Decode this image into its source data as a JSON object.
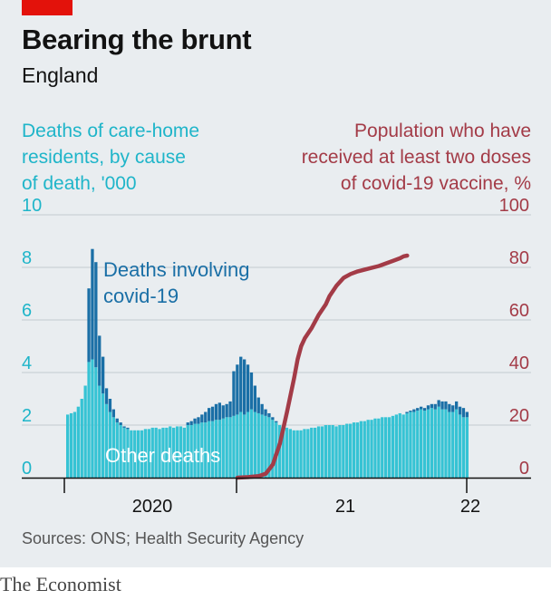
{
  "header": {
    "title": "Bearing the brunt",
    "subtitle": "England"
  },
  "axes": {
    "left_label": [
      "Deaths of care-home",
      "residents, by cause",
      "of death, '000"
    ],
    "right_label": [
      "Population who have",
      "received at least two doses",
      "of covid-19 vaccine, %"
    ]
  },
  "annotations": {
    "covid": [
      "Deaths involving",
      "covid-19"
    ],
    "other": "Other deaths"
  },
  "footer": {
    "source": "Sources: ONS; Health Security Agency",
    "brand": "The Economist"
  },
  "colors": {
    "other_deaths": "#36c3d4",
    "covid_deaths": "#1a6fa6",
    "vaccine_line": "#a33b47",
    "left_axis": "#1fb5c9",
    "right_axis": "#a33b47"
  },
  "chart_data": {
    "type": "bar",
    "stacked": true,
    "x_unit": "week",
    "x_start": "2020-01",
    "x_tick_labels": [
      "2020",
      "21",
      "22"
    ],
    "left_axis": {
      "label": "Deaths of care-home residents, by cause of death, '000",
      "ylim": [
        0,
        10
      ],
      "ticks": [
        0,
        2,
        4,
        6,
        8,
        10
      ]
    },
    "right_axis": {
      "label": "Population who have received at least two doses of covid-19 vaccine, %",
      "ylim": [
        0,
        100
      ],
      "ticks": [
        0,
        20,
        40,
        60,
        80,
        100
      ]
    },
    "series": [
      {
        "name": "Other deaths",
        "values": [
          2.4,
          2.45,
          2.5,
          2.7,
          3.0,
          3.5,
          4.4,
          4.5,
          4.2,
          3.5,
          3.2,
          2.8,
          2.5,
          2.3,
          2.1,
          2.0,
          1.9,
          1.85,
          1.8,
          1.8,
          1.8,
          1.8,
          1.85,
          1.85,
          1.9,
          1.9,
          1.85,
          1.9,
          1.9,
          1.95,
          1.9,
          1.95,
          1.95,
          1.9,
          2.0,
          2.0,
          2.05,
          2.05,
          2.1,
          2.1,
          2.15,
          2.15,
          2.2,
          2.2,
          2.25,
          2.3,
          2.3,
          2.35,
          2.4,
          2.5,
          2.4,
          2.5,
          2.6,
          2.5,
          2.45,
          2.4,
          2.35,
          2.3,
          2.2,
          2.1,
          2.0,
          1.95,
          1.9,
          1.85,
          1.8,
          1.8,
          1.8,
          1.85,
          1.85,
          1.9,
          1.9,
          1.95,
          1.95,
          2.0,
          2.0,
          2.0,
          1.95,
          2.0,
          2.0,
          2.05,
          2.05,
          2.1,
          2.1,
          2.15,
          2.15,
          2.2,
          2.2,
          2.25,
          2.25,
          2.3,
          2.3,
          2.3,
          2.35,
          2.4,
          2.45,
          2.4,
          2.45,
          2.5,
          2.5,
          2.55,
          2.6,
          2.55,
          2.6,
          2.65,
          2.6,
          2.7,
          2.6,
          2.6,
          2.5,
          2.5,
          2.6,
          2.4,
          2.3,
          2.3
        ]
      },
      {
        "name": "Deaths involving covid-19",
        "values": [
          0,
          0,
          0,
          0,
          0,
          0,
          2.8,
          4.2,
          4.0,
          1.9,
          1.4,
          0.6,
          0.5,
          0.3,
          0.15,
          0.1,
          0.05,
          0.05,
          0,
          0,
          0,
          0,
          0,
          0,
          0,
          0,
          0,
          0,
          0,
          0,
          0,
          0,
          0,
          0,
          0.1,
          0.15,
          0.2,
          0.25,
          0.3,
          0.4,
          0.5,
          0.55,
          0.6,
          0.65,
          0.5,
          0.5,
          0.6,
          1.7,
          1.9,
          2.1,
          2.1,
          1.8,
          1.4,
          1.0,
          0.6,
          0.4,
          0.25,
          0.15,
          0.1,
          0.05,
          0,
          0,
          0,
          0,
          0,
          0,
          0,
          0,
          0,
          0,
          0,
          0,
          0,
          0,
          0,
          0,
          0,
          0,
          0,
          0,
          0,
          0,
          0,
          0,
          0,
          0,
          0,
          0,
          0,
          0,
          0,
          0,
          0,
          0,
          0,
          0,
          0.05,
          0.05,
          0.1,
          0.1,
          0.1,
          0.1,
          0.15,
          0.15,
          0.2,
          0.25,
          0.3,
          0.3,
          0.3,
          0.25,
          0.3,
          0.3,
          0.35,
          0.2
        ]
      },
      {
        "name": "Population who have received at least two doses of covid-19 vaccine, %",
        "axis": "right",
        "type": "line",
        "points": [
          [
            48,
            0
          ],
          [
            51,
            0.2
          ],
          [
            54,
            0.6
          ],
          [
            56,
            1.5
          ],
          [
            58,
            5
          ],
          [
            60,
            13
          ],
          [
            62,
            25
          ],
          [
            64,
            38
          ],
          [
            65,
            45
          ],
          [
            66,
            50
          ],
          [
            67,
            53
          ],
          [
            69,
            57
          ],
          [
            71,
            62
          ],
          [
            73,
            66
          ],
          [
            74,
            69
          ],
          [
            76,
            73
          ],
          [
            78,
            76
          ],
          [
            80,
            77.5
          ],
          [
            82,
            78.5
          ],
          [
            85,
            79.5
          ],
          [
            88,
            80.5
          ],
          [
            90,
            81.5
          ],
          [
            92,
            82.5
          ],
          [
            94,
            83.5
          ],
          [
            95,
            84.2
          ],
          [
            96,
            84.5
          ]
        ]
      }
    ]
  }
}
